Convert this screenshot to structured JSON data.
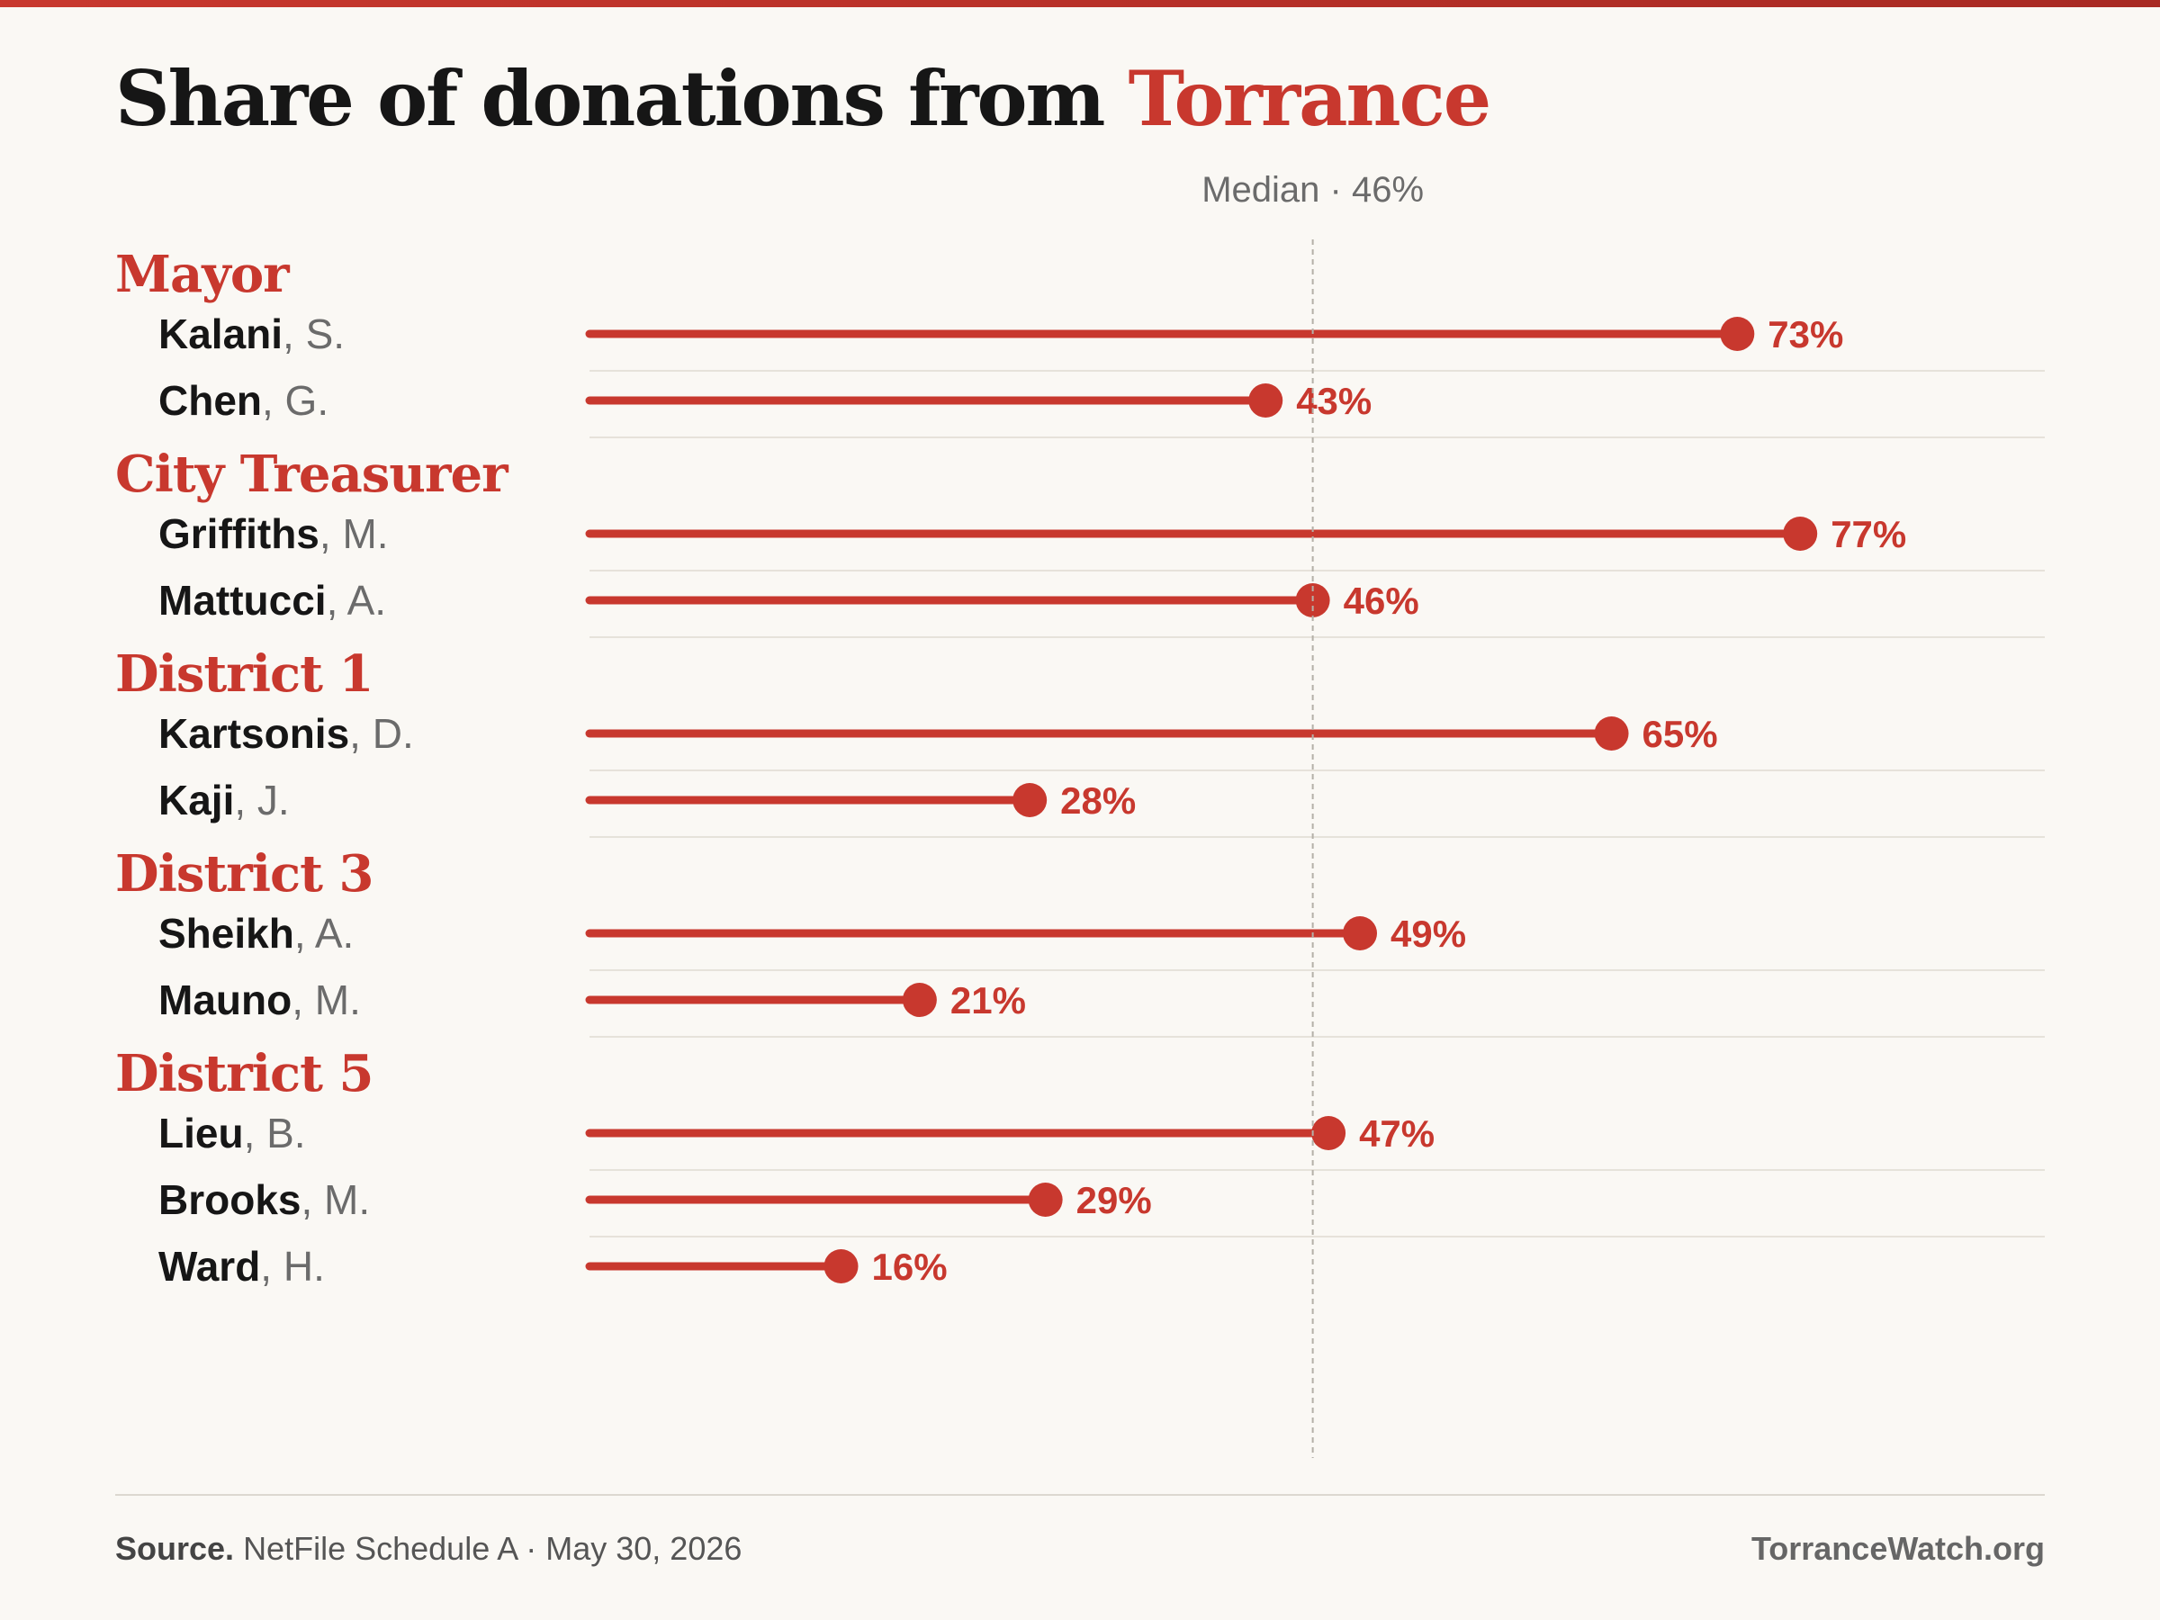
{
  "header": {
    "title_prefix": "Share of donations from",
    "title_accent": "Torrance"
  },
  "colors": {
    "accent": "#c8382e",
    "text": "#161616",
    "muted": "#6b6b6b",
    "background": "#faf8f4"
  },
  "chart_data": {
    "type": "lollipop",
    "unit": "%",
    "xlim": [
      0,
      100
    ],
    "median": {
      "label": "Median · 46%",
      "value": 46
    },
    "groups": [
      {
        "name": "Mayor",
        "rows": [
          {
            "last": "Kalani",
            "initial": ", S.",
            "value": 73,
            "label": "73%"
          },
          {
            "last": "Chen",
            "initial": ", G.",
            "value": 43,
            "label": "43%"
          }
        ]
      },
      {
        "name": "City Treasurer",
        "rows": [
          {
            "last": "Griffiths",
            "initial": ", M.",
            "value": 77,
            "label": "77%"
          },
          {
            "last": "Mattucci",
            "initial": ", A.",
            "value": 46,
            "label": "46%"
          }
        ]
      },
      {
        "name": "District 1",
        "rows": [
          {
            "last": "Kartsonis",
            "initial": ", D.",
            "value": 65,
            "label": "65%"
          },
          {
            "last": "Kaji",
            "initial": ", J.",
            "value": 28,
            "label": "28%"
          }
        ]
      },
      {
        "name": "District 3",
        "rows": [
          {
            "last": "Sheikh",
            "initial": ", A.",
            "value": 49,
            "label": "49%"
          },
          {
            "last": "Mauno",
            "initial": ", M.",
            "value": 21,
            "label": "21%"
          }
        ]
      },
      {
        "name": "District 5",
        "rows": [
          {
            "last": "Lieu",
            "initial": ", B.",
            "value": 47,
            "label": "47%"
          },
          {
            "last": "Brooks",
            "initial": ", M.",
            "value": 29,
            "label": "29%"
          },
          {
            "last": "Ward",
            "initial": ", H.",
            "value": 16,
            "label": "16%"
          }
        ]
      }
    ]
  },
  "footer": {
    "source_label": "Source.",
    "source_text": "NetFile Schedule A · May 30, 2026",
    "brand": "TorranceWatch.org"
  }
}
